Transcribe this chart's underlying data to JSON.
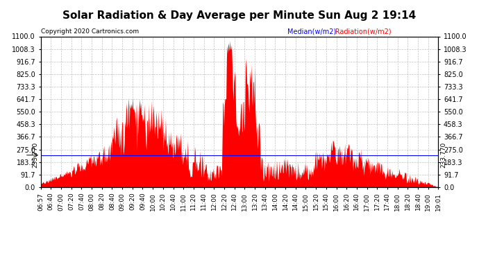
{
  "title": "Solar Radiation & Day Average per Minute Sun Aug 2 19:14",
  "copyright": "Copyright 2020 Cartronics.com",
  "legend_median_label": "Median(w/m2)",
  "legend_radiation_label": "Radiation(w/m2)",
  "median_value": 233.77,
  "y_tick_labels": [
    "0.0",
    "91.7",
    "183.3",
    "275.0",
    "366.7",
    "458.3",
    "550.0",
    "641.7",
    "733.3",
    "825.0",
    "916.7",
    "1008.3",
    "1100.0"
  ],
  "y_tick_values": [
    0.0,
    91.7,
    183.3,
    275.0,
    366.7,
    458.3,
    550.0,
    641.7,
    733.3,
    825.0,
    916.7,
    1008.3,
    1100.0
  ],
  "ymin": 0.0,
  "ymax": 1100.0,
  "background_color": "#ffffff",
  "plot_bg_color": "#ffffff",
  "radiation_color": "#ff0000",
  "median_line_color": "#0000ff",
  "grid_color": "#bbbbbb",
  "title_fontsize": 11,
  "copyright_fontsize": 6.5,
  "x_label_fontsize": 6.5,
  "y_label_fontsize": 7,
  "x_tick_labels": [
    "06:57",
    "06:40",
    "07:00",
    "07:20",
    "07:40",
    "08:00",
    "08:20",
    "08:40",
    "09:00",
    "09:20",
    "09:40",
    "10:00",
    "10:20",
    "10:40",
    "11:00",
    "11:20",
    "11:40",
    "12:00",
    "12:20",
    "12:40",
    "13:00",
    "13:20",
    "13:40",
    "14:00",
    "14:20",
    "14:40",
    "15:00",
    "15:20",
    "15:40",
    "16:00",
    "16:20",
    "16:40",
    "17:00",
    "17:20",
    "17:40",
    "18:00",
    "18:20",
    "18:40",
    "19:00",
    "19:01"
  ]
}
